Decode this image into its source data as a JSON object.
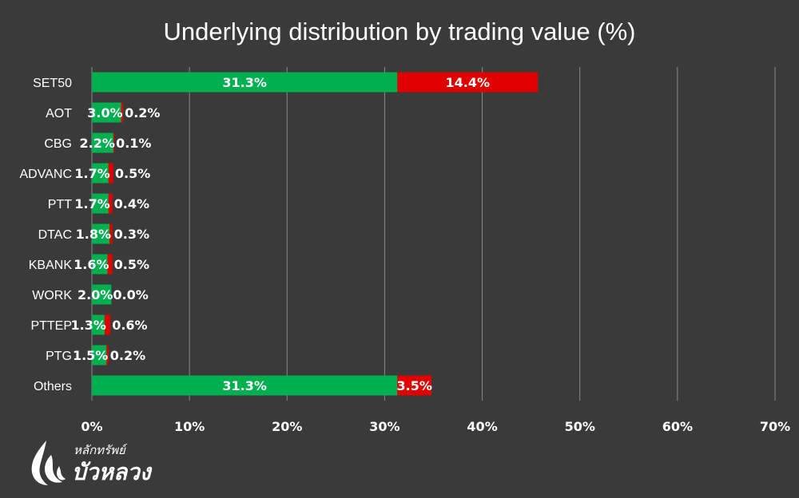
{
  "chart_data": {
    "type": "bar",
    "orientation": "horizontal",
    "stacked": true,
    "title": "Underlying distribution by trading value (%)",
    "categories": [
      "SET50",
      "AOT",
      "CBG",
      "ADVANC",
      "PTT",
      "DTAC",
      "KBANK",
      "WORK",
      "PTTEP",
      "PTG",
      "Others"
    ],
    "series": [
      {
        "values": [
          31.3,
          3.0,
          2.2,
          1.7,
          1.7,
          1.8,
          1.6,
          2.0,
          1.3,
          1.5,
          31.3
        ],
        "color": "#00b050"
      },
      {
        "values": [
          14.4,
          0.2,
          0.1,
          0.5,
          0.4,
          0.3,
          0.5,
          0.0,
          0.6,
          0.2,
          3.5
        ],
        "color": "#e00000"
      }
    ],
    "xlim": [
      0,
      70
    ],
    "x_ticks": [
      "0%",
      "10%",
      "20%",
      "30%",
      "40%",
      "50%",
      "60%",
      "70%"
    ],
    "grid": true,
    "value_suffix": "%"
  },
  "logo": {
    "text_small": "หลักทรัพย์",
    "text_big": "บัวหลวง"
  }
}
